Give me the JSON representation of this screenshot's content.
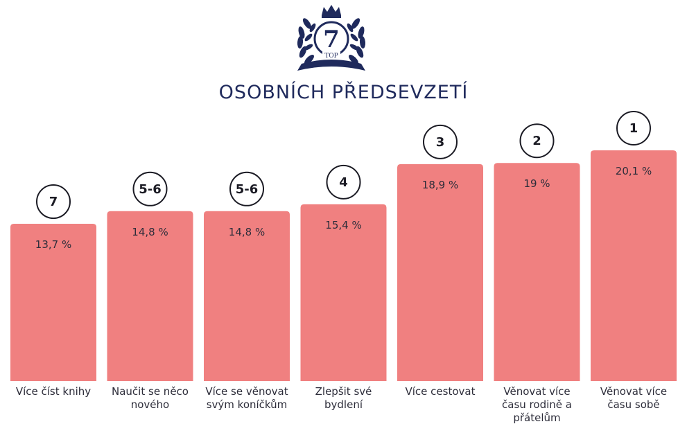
{
  "logo": {
    "number": "7",
    "text": "TOP",
    "icon": "laurel-crown-icon",
    "color": "#1f2a5c"
  },
  "chart_data": {
    "type": "bar",
    "title": "OSOBNÍCH PŘEDSEVZETÍ",
    "categories": [
      "Více číst knihy",
      "Naučit se něco nového",
      "Více se věnovat svým koníčkům",
      "Zlepšit své bydlení",
      "Více cestovat",
      "Věnovat více času rodině a přátelům",
      "Věnovat více času sobě"
    ],
    "category_lines": [
      [
        "Více číst knihy"
      ],
      [
        "Naučit se něco",
        "nového"
      ],
      [
        "Více se věnovat",
        "svým koníčkům"
      ],
      [
        "Zlepšit své",
        "bydlení"
      ],
      [
        "Více cestovat"
      ],
      [
        "Věnovat více",
        "času rodině a",
        "přátelům"
      ],
      [
        "Věnovat více",
        "času sobě"
      ]
    ],
    "values": [
      13.7,
      14.8,
      14.8,
      15.4,
      18.9,
      19,
      20.1
    ],
    "value_labels": [
      "13,7 %",
      "14,8 %",
      "14,8 %",
      "15,4 %",
      "18,9 %",
      "19 %",
      "20,1 %"
    ],
    "ranks": [
      "7",
      "5-6",
      "5-6",
      "4",
      "3",
      "2",
      "1"
    ],
    "xlabel": "",
    "ylabel": "",
    "ylim": [
      0,
      20.1
    ],
    "grid": false,
    "legend": "none",
    "bar_color": "#f08080"
  }
}
